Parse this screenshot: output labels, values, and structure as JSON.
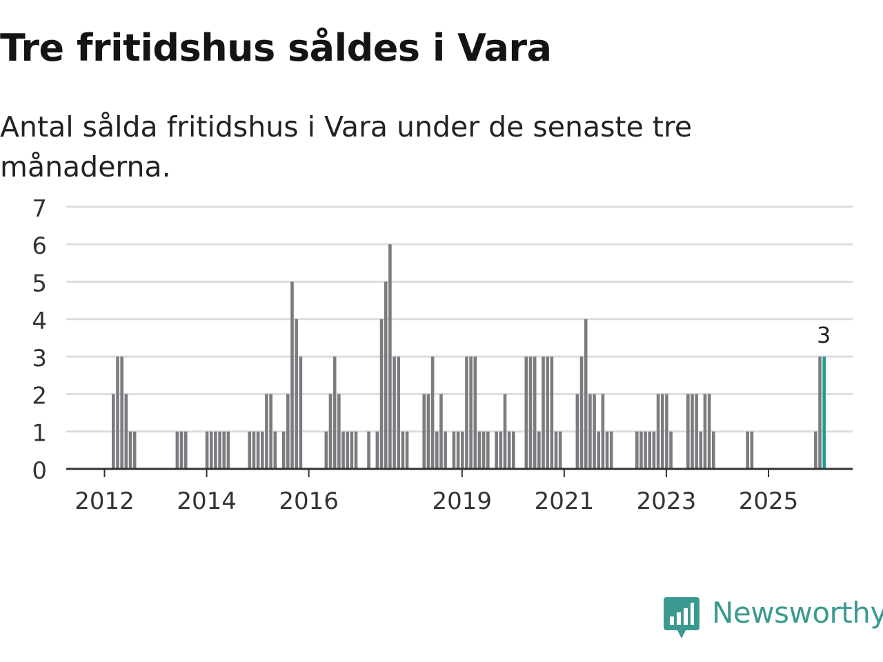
{
  "header": {
    "title": "Tre fritidshus såldes i Vara",
    "subtitle": "Antal sålda fritidshus i Vara under de senaste tre månaderna."
  },
  "brand": {
    "name": "Newsworthy",
    "color": "#3a9a90",
    "icon": "newsworthy-chat-chart-icon"
  },
  "colors": {
    "bar": "#7b7b80",
    "highlight": "#1a9e8f",
    "grid": "#dddddd",
    "axis": "#333333"
  },
  "chart_data": {
    "type": "bar",
    "title": "Tre fritidshus såldes i Vara",
    "subtitle": "Antal sålda fritidshus i Vara under de senaste tre månaderna.",
    "xlabel": "",
    "ylabel": "",
    "ylim": [
      0,
      7
    ],
    "yticks": [
      "0",
      "1",
      "2",
      "3",
      "4",
      "5",
      "6",
      "7"
    ],
    "xticks": [
      {
        "label": "2012",
        "month": 0
      },
      {
        "label": "2014",
        "month": 24
      },
      {
        "label": "2016",
        "month": 48
      },
      {
        "label": "2019",
        "month": 84
      },
      {
        "label": "2021",
        "month": 108
      },
      {
        "label": "2023",
        "month": 132
      },
      {
        "label": "2025",
        "month": 156
      }
    ],
    "start": "2011-02",
    "period": "rullande tre månader",
    "values": [
      0,
      0,
      0,
      0,
      0,
      0,
      0,
      0,
      0,
      0,
      0,
      0,
      0,
      2,
      3,
      3,
      2,
      1,
      1,
      0,
      0,
      0,
      0,
      0,
      0,
      0,
      0,
      0,
      1,
      1,
      1,
      0,
      0,
      0,
      0,
      1,
      1,
      1,
      1,
      1,
      1,
      0,
      0,
      0,
      0,
      1,
      1,
      1,
      1,
      2,
      2,
      1,
      0,
      1,
      2,
      5,
      4,
      3,
      0,
      0,
      0,
      0,
      0,
      1,
      2,
      3,
      2,
      1,
      1,
      1,
      1,
      0,
      0,
      1,
      0,
      1,
      4,
      5,
      6,
      3,
      3,
      1,
      1,
      0,
      0,
      0,
      2,
      2,
      3,
      1,
      2,
      1,
      0,
      1,
      1,
      1,
      3,
      3,
      3,
      1,
      1,
      1,
      0,
      1,
      1,
      2,
      1,
      1,
      0,
      0,
      3,
      3,
      3,
      1,
      3,
      3,
      3,
      1,
      1,
      0,
      0,
      0,
      2,
      3,
      4,
      2,
      2,
      1,
      2,
      1,
      1,
      0,
      0,
      0,
      0,
      0,
      1,
      1,
      1,
      1,
      1,
      2,
      2,
      2,
      1,
      0,
      0,
      0,
      2,
      2,
      2,
      1,
      2,
      2,
      1,
      0,
      0,
      0,
      0,
      0,
      0,
      0,
      1,
      1,
      0,
      0,
      0,
      0,
      0,
      0,
      0,
      0,
      0,
      0,
      0,
      0,
      0,
      0,
      1,
      3,
      3
    ],
    "highlight_last": true,
    "annotation": {
      "text": "3",
      "target": "last"
    }
  }
}
